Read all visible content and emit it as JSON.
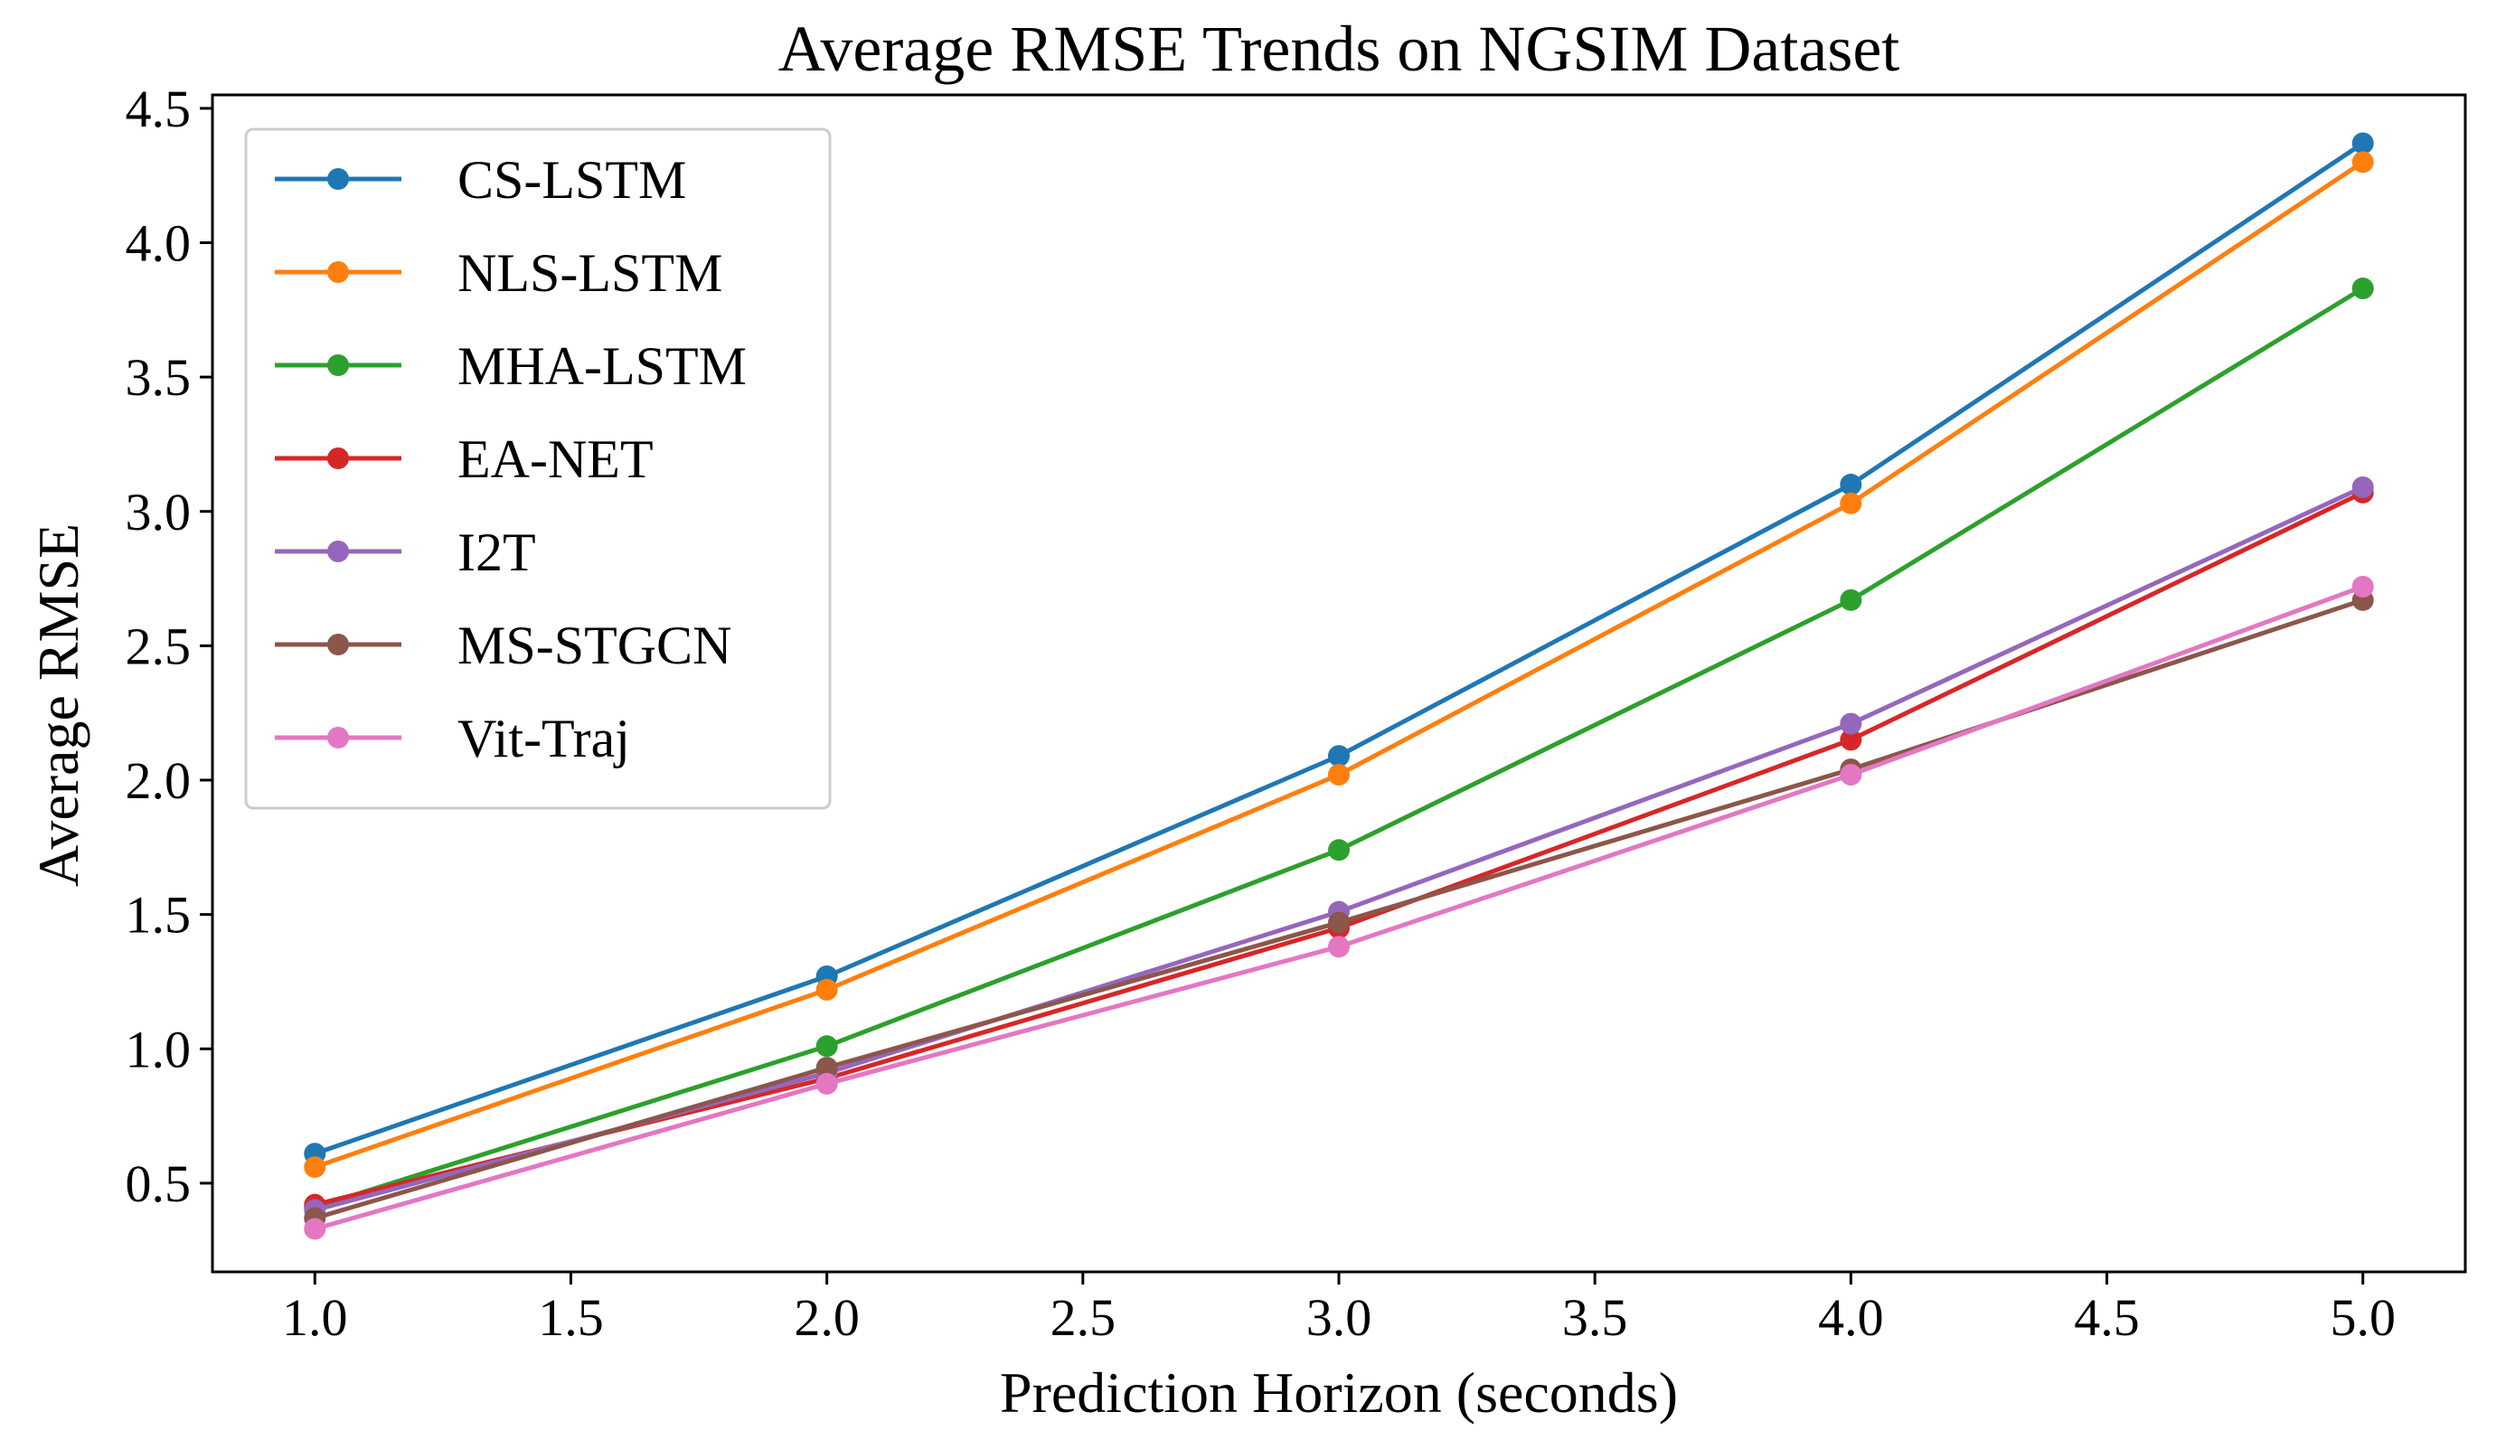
{
  "chart_data": {
    "type": "line",
    "title": "Average RMSE Trends on NGSIM Dataset",
    "xlabel": "Prediction Horizon (seconds)",
    "ylabel": "Average RMSE",
    "x": [
      1.0,
      2.0,
      3.0,
      4.0,
      5.0
    ],
    "xlim": [
      0.8,
      5.2
    ],
    "ylim": [
      0.17,
      4.55
    ],
    "x_ticks": [
      1.0,
      1.5,
      2.0,
      2.5,
      3.0,
      3.5,
      4.0,
      4.5,
      5.0
    ],
    "x_tick_labels": [
      "1.0",
      "1.5",
      "2.0",
      "2.5",
      "3.0",
      "3.5",
      "4.0",
      "4.5",
      "5.0"
    ],
    "y_ticks": [
      0.5,
      1.0,
      1.5,
      2.0,
      2.5,
      3.0,
      3.5,
      4.0,
      4.5
    ],
    "y_tick_labels": [
      "0.5",
      "1.0",
      "1.5",
      "2.0",
      "2.5",
      "3.0",
      "3.5",
      "4.0",
      "4.5"
    ],
    "grid": false,
    "legend_position": "top-left",
    "series": [
      {
        "name": "CS-LSTM",
        "color": "#1f77b4",
        "values": [
          0.61,
          1.27,
          2.09,
          3.1,
          4.37
        ]
      },
      {
        "name": "NLS-LSTM",
        "color": "#ff7f0e",
        "values": [
          0.56,
          1.22,
          2.02,
          3.03,
          4.3
        ]
      },
      {
        "name": "MHA-LSTM",
        "color": "#2ca02c",
        "values": [
          0.41,
          1.01,
          1.74,
          2.67,
          3.83
        ]
      },
      {
        "name": "EA-NET",
        "color": "#d62728",
        "values": [
          0.42,
          0.89,
          1.45,
          2.15,
          3.07
        ]
      },
      {
        "name": "I2T",
        "color": "#9467bd",
        "values": [
          0.4,
          0.91,
          1.51,
          2.21,
          3.09
        ]
      },
      {
        "name": "MS-STGCN",
        "color": "#8c564b",
        "values": [
          0.37,
          0.93,
          1.47,
          2.04,
          2.67
        ]
      },
      {
        "name": "Vit-Traj",
        "color": "#e377c2",
        "values": [
          0.33,
          0.87,
          1.38,
          2.02,
          2.72
        ]
      }
    ]
  }
}
